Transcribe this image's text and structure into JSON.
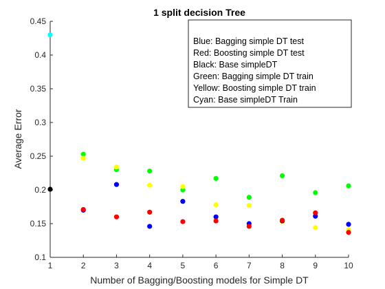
{
  "chart_data": {
    "type": "scatter",
    "title": "1 split decision Tree",
    "xlabel": "Number of Bagging/Boosting models for Simple DT",
    "ylabel": "Average Error",
    "xlim": [
      1,
      10
    ],
    "ylim": [
      0.1,
      0.45
    ],
    "xticks": [
      1,
      2,
      3,
      4,
      5,
      6,
      7,
      8,
      9,
      10
    ],
    "yticks": [
      0.1,
      0.15,
      0.2,
      0.25,
      0.3,
      0.35,
      0.4,
      0.45
    ],
    "grid": false,
    "legend_placement": "top-right",
    "legend_lines": [
      "Blue: Bagging simple DT test",
      "Red: Boosting simple DT test",
      "Black: Base simpleDT",
      "Green: Bagging simple DT train",
      "Yellow: Boosting simple DT train",
      "Cyan: Base simpleDT Train"
    ],
    "series": [
      {
        "color": "#00ff00",
        "x": [
          2,
          3,
          4,
          5,
          6,
          7,
          8,
          9,
          10
        ],
        "y": [
          0.253,
          0.23,
          0.228,
          0.2,
          0.217,
          0.189,
          0.221,
          0.196,
          0.206
        ]
      },
      {
        "color": "#ffff00",
        "x": [
          2,
          3,
          4,
          5,
          6,
          7,
          8,
          9,
          10
        ],
        "y": [
          0.247,
          0.234,
          0.207,
          0.205,
          0.178,
          0.177,
          0.153,
          0.144,
          0.141
        ]
      },
      {
        "color": "#0000ff",
        "x": [
          2,
          3,
          4,
          5,
          6,
          7,
          8,
          9,
          10
        ],
        "y": [
          0.17,
          0.208,
          0.146,
          0.183,
          0.16,
          0.15,
          0.154,
          0.161,
          0.149
        ]
      },
      {
        "color": "#ff0000",
        "x": [
          2,
          3,
          4,
          5,
          6,
          7,
          8,
          9,
          10
        ],
        "y": [
          0.171,
          0.16,
          0.167,
          0.153,
          0.154,
          0.146,
          0.155,
          0.166,
          0.137
        ]
      },
      {
        "color": "#000000",
        "x": [
          1
        ],
        "y": [
          0.201
        ]
      },
      {
        "color": "#00ffff",
        "x": [
          1
        ],
        "y": [
          0.43
        ]
      }
    ]
  }
}
